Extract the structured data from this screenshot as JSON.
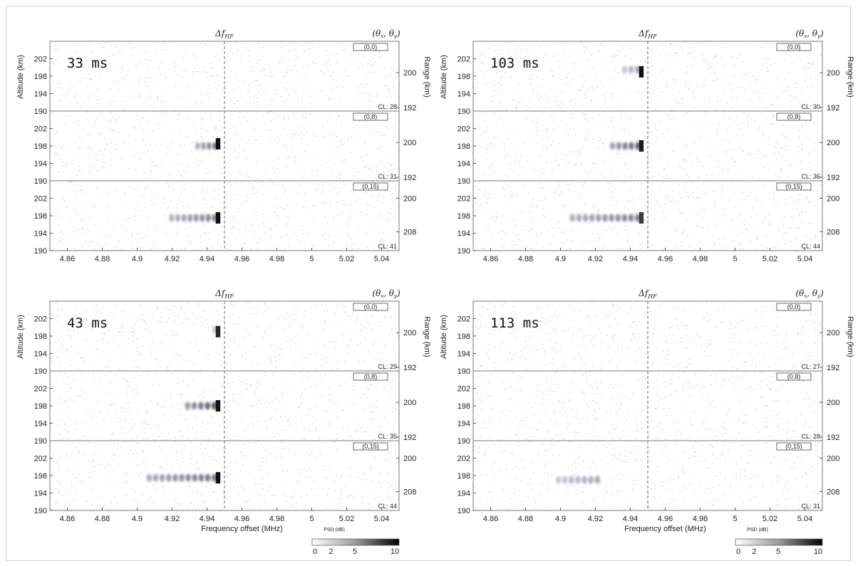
{
  "chart_data": {
    "type": "heatmap",
    "shared": {
      "header_delta": "Δf",
      "header_delta_sub": "HF",
      "header_angles": "(θ",
      "xlabel": "Frequency offset (MHz)",
      "ylabel_left": "Altitude (km)",
      "ylabel_right": "Range (km)",
      "x_ticks": [
        "4.86",
        "4.88",
        "4.9",
        "4.92",
        "4.94",
        "4.96",
        "4.98",
        "5",
        "5.02",
        "5.04"
      ],
      "x_tick_values": [
        4.86,
        4.88,
        4.9,
        4.92,
        4.94,
        4.96,
        4.98,
        5.0,
        5.02,
        5.04
      ],
      "xlim": [
        4.85,
        5.05
      ],
      "dashed_line_x": 4.95,
      "ylim": [
        190,
        206
      ],
      "y_ticks": [
        "190",
        "194",
        "198",
        "202"
      ],
      "y_tick_values": [
        190,
        194,
        198,
        202
      ],
      "range_ticks_top": [
        "192",
        "200"
      ],
      "range_ticks_mid": [
        "192",
        "200"
      ],
      "range_ticks_bot": [
        "200",
        "208"
      ],
      "colorbar_label": "PSD (dB)",
      "colorbar_ticks": [
        "0",
        "2",
        "5",
        "10"
      ],
      "colorbar_range": [
        0,
        10
      ],
      "colormap": [
        "#ffffff",
        "#000000"
      ]
    },
    "panels": [
      {
        "time_label": "33 ms",
        "show_xlabel": false,
        "show_colorbar": false,
        "rows": [
          {
            "beam": "(0,0)",
            "cl": "CL: 28",
            "blobs": []
          },
          {
            "beam": "(0,8)",
            "cl": "CL: 31",
            "blobs": [
              {
                "f0": 4.933,
                "f1": 4.946,
                "alt": 198,
                "strength": 0.6
              },
              {
                "f0": 4.945,
                "f1": 4.947,
                "alt": 198.5,
                "strength": 1.0
              }
            ]
          },
          {
            "beam": "(0,15)",
            "cl": "CL: 41",
            "blobs": [
              {
                "f0": 4.918,
                "f1": 4.946,
                "alt": 197.5,
                "strength": 0.55
              },
              {
                "f0": 4.945,
                "f1": 4.947,
                "alt": 197.5,
                "strength": 1.0
              }
            ]
          }
        ]
      },
      {
        "time_label": "103 ms",
        "show_xlabel": false,
        "show_colorbar": false,
        "rows": [
          {
            "beam": "(0,0)",
            "cl": "CL: 30",
            "blobs": [
              {
                "f0": 4.935,
                "f1": 4.946,
                "alt": 199.5,
                "strength": 0.35
              },
              {
                "f0": 4.945,
                "f1": 4.947,
                "alt": 199,
                "strength": 1.0
              }
            ]
          },
          {
            "beam": "(0,8)",
            "cl": "CL: 36",
            "blobs": [
              {
                "f0": 4.928,
                "f1": 4.946,
                "alt": 198,
                "strength": 0.7
              },
              {
                "f0": 4.945,
                "f1": 4.947,
                "alt": 198,
                "strength": 0.95
              }
            ]
          },
          {
            "beam": "(0,15)",
            "cl": "CL: 44",
            "blobs": [
              {
                "f0": 4.905,
                "f1": 4.946,
                "alt": 197.5,
                "strength": 0.55
              },
              {
                "f0": 4.945,
                "f1": 4.947,
                "alt": 197.5,
                "strength": 0.8
              }
            ]
          }
        ]
      },
      {
        "time_label": "43 ms",
        "show_xlabel": true,
        "show_colorbar": true,
        "rows": [
          {
            "beam": "(0,0)",
            "cl": "CL: 29",
            "blobs": [
              {
                "f0": 4.943,
                "f1": 4.946,
                "alt": 199.5,
                "strength": 0.5
              },
              {
                "f0": 4.945,
                "f1": 4.947,
                "alt": 199,
                "strength": 0.9
              }
            ]
          },
          {
            "beam": "(0,8)",
            "cl": "CL: 35",
            "blobs": [
              {
                "f0": 4.927,
                "f1": 4.946,
                "alt": 198,
                "strength": 0.75
              },
              {
                "f0": 4.945,
                "f1": 4.947,
                "alt": 198,
                "strength": 1.0
              }
            ]
          },
          {
            "beam": "(0,15)",
            "cl": "CL: 44",
            "blobs": [
              {
                "f0": 4.905,
                "f1": 4.946,
                "alt": 197.5,
                "strength": 0.6
              },
              {
                "f0": 4.945,
                "f1": 4.947,
                "alt": 197.5,
                "strength": 1.0
              }
            ]
          }
        ]
      },
      {
        "time_label": "113 ms",
        "show_xlabel": true,
        "show_colorbar": true,
        "rows": [
          {
            "beam": "(0,0)",
            "cl": "CL: 27",
            "blobs": []
          },
          {
            "beam": "(0,8)",
            "cl": "CL: 28",
            "blobs": []
          },
          {
            "beam": "(0,15)",
            "cl": "CL: 31",
            "blobs": [
              {
                "f0": 4.897,
                "f1": 4.923,
                "alt": 197,
                "strength": 0.35
              }
            ]
          }
        ]
      }
    ]
  }
}
